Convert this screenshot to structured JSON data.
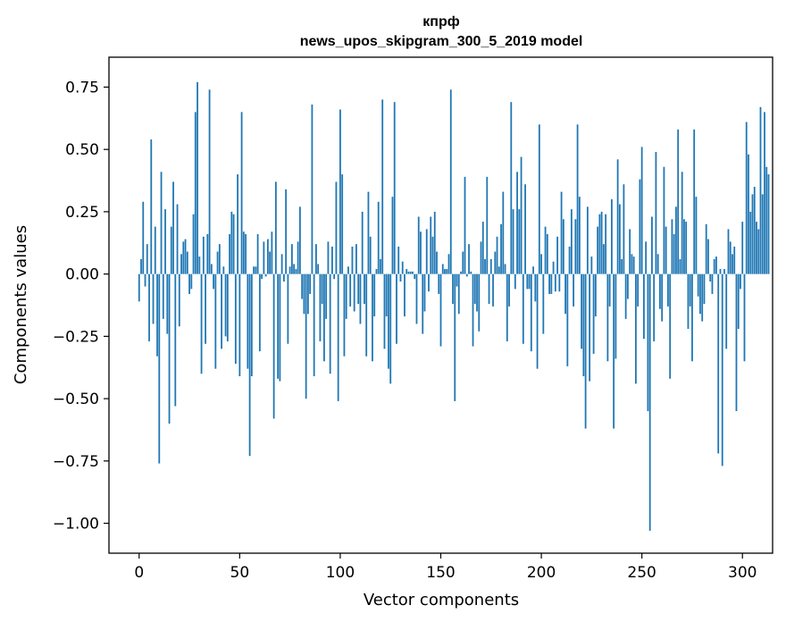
{
  "chart_data": {
    "type": "bar",
    "title": "кпрф",
    "subtitle": "news_upos_skipgram_300_5_2019 model",
    "xlabel": "Vector components",
    "ylabel": "Components values",
    "xlim": [
      -15,
      315
    ],
    "ylim": [
      -1.12,
      0.87
    ],
    "xticks": [
      0,
      50,
      100,
      150,
      200,
      250,
      300
    ],
    "xtick_labels": [
      "0",
      "50",
      "100",
      "150",
      "200",
      "250",
      "300"
    ],
    "yticks": [
      -1.0,
      -0.75,
      -0.5,
      -0.25,
      0.0,
      0.25,
      0.5,
      0.75
    ],
    "ytick_labels": [
      "−1.00",
      "−0.75",
      "−0.50",
      "−0.25",
      "0.00",
      "0.25",
      "0.50",
      "0.75"
    ],
    "grid": false,
    "bar_color": "#1f77b4",
    "values": [
      -0.11,
      0.06,
      0.29,
      -0.05,
      0.12,
      -0.27,
      0.54,
      -0.2,
      0.19,
      -0.33,
      -0.76,
      0.41,
      -0.18,
      0.26,
      -0.24,
      -0.6,
      0.19,
      0.37,
      -0.53,
      0.28,
      -0.21,
      0.08,
      0.13,
      0.14,
      0.09,
      -0.08,
      -0.06,
      0.24,
      0.65,
      0.77,
      0.07,
      -0.4,
      0.15,
      -0.28,
      0.16,
      0.74,
      0.04,
      -0.06,
      -0.38,
      0.09,
      0.12,
      -0.3,
      0.03,
      -0.25,
      -0.27,
      0.16,
      0.25,
      0.24,
      -0.36,
      0.4,
      -0.41,
      0.65,
      0.17,
      0.16,
      -0.38,
      -0.73,
      -0.41,
      0.03,
      0.03,
      0.16,
      -0.31,
      -0.02,
      0.13,
      -0.01,
      0.14,
      0.09,
      0.17,
      -0.58,
      0.37,
      -0.42,
      -0.43,
      0.08,
      -0.03,
      0.34,
      -0.28,
      0.03,
      0.12,
      0.04,
      0.02,
      0.13,
      0.27,
      -0.1,
      -0.16,
      -0.5,
      -0.16,
      -0.08,
      0.68,
      -0.41,
      0.12,
      0.04,
      -0.27,
      -0.12,
      -0.35,
      -0.18,
      0.13,
      -0.4,
      0.11,
      -0.02,
      0.37,
      -0.51,
      0.66,
      0.4,
      -0.33,
      -0.18,
      0.03,
      -0.13,
      0.11,
      -0.15,
      0.12,
      -0.12,
      -0.2,
      0.25,
      -0.12,
      -0.33,
      0.33,
      0.15,
      -0.35,
      -0.17,
      0.02,
      0.29,
      0.06,
      0.7,
      -0.3,
      -0.17,
      -0.38,
      -0.44,
      0.31,
      0.69,
      -0.28,
      0.11,
      -0.03,
      0.05,
      -0.17,
      0.02,
      0.01,
      0.01,
      0.01,
      -0.02,
      -0.2,
      0.23,
      0.17,
      -0.24,
      -0.15,
      0.18,
      -0.07,
      0.23,
      0.15,
      0.25,
      0.09,
      -0.08,
      -0.29,
      0.04,
      0.02,
      0.02,
      0.08,
      0.74,
      -0.12,
      -0.51,
      -0.05,
      -0.16,
      0.01,
      0.09,
      0.39,
      -0.01,
      0.12,
      0.01,
      -0.29,
      -0.12,
      -0.15,
      -0.23,
      0.13,
      0.21,
      0.06,
      0.39,
      -0.12,
      0.06,
      -0.13,
      0.09,
      0.15,
      0.03,
      0.2,
      0.33,
      0.04,
      -0.27,
      -0.13,
      0.69,
      0.26,
      -0.06,
      0.41,
      0.26,
      0.47,
      -0.28,
      0.36,
      -0.06,
      -0.06,
      -0.31,
      0.03,
      -0.11,
      -0.38,
      0.6,
      0.08,
      -0.24,
      0.19,
      0.16,
      -0.08,
      -0.08,
      0.05,
      -0.07,
      0.15,
      -0.07,
      0.33,
      0.22,
      -0.16,
      -0.37,
      0.11,
      0.26,
      -0.13,
      0.22,
      0.6,
      0.31,
      -0.3,
      -0.41,
      -0.62,
      0.27,
      -0.43,
      0.07,
      -0.32,
      -0.17,
      0.19,
      0.24,
      0.25,
      0.12,
      0.24,
      -0.35,
      -0.13,
      0.3,
      -0.62,
      -0.34,
      0.46,
      0.28,
      0.06,
      0.36,
      -0.18,
      -0.1,
      0.18,
      0.08,
      0.07,
      -0.44,
      -0.13,
      0.38,
      0.51,
      -0.26,
      0.13,
      -0.55,
      -1.03,
      0.23,
      -0.27,
      0.49,
      0.08,
      -0.14,
      -0.19,
      0.43,
      0.19,
      -0.13,
      -0.42,
      0.22,
      0.16,
      0.27,
      0.58,
      0.06,
      0.41,
      0.22,
      0.21,
      -0.22,
      -0.13,
      -0.35,
      0.58,
      0.31,
      -0.09,
      -0.16,
      -0.19,
      -0.12,
      0.2,
      0.14,
      -0.03,
      -0.08,
      0.06,
      0.07,
      -0.72,
      0.02,
      -0.77,
      0.02,
      -0.3,
      0.18,
      0.13,
      0.08,
      0.11,
      -0.55,
      -0.22,
      -0.06,
      0.21,
      -0.35,
      0.61,
      0.48,
      0.25,
      0.32,
      0.35,
      0.21,
      0.18,
      0.67,
      0.32,
      0.65,
      0.43,
      0.4
    ]
  }
}
